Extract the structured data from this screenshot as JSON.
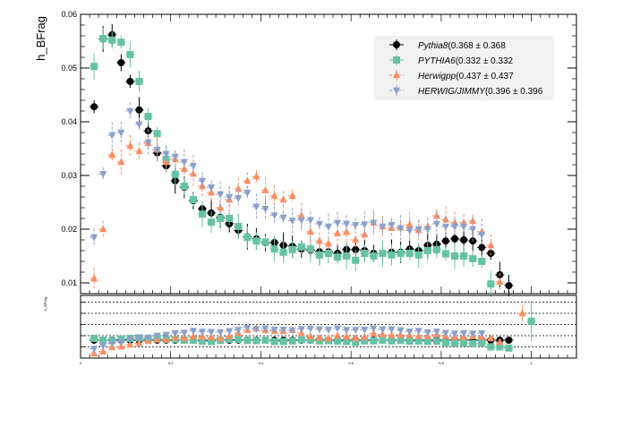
{
  "chart_data": [
    {
      "type": "scatter",
      "ylabel": "h_BFrag",
      "ylim": [
        0.008,
        0.06
      ],
      "yticks": [
        0.01,
        0.02,
        0.03,
        0.04,
        0.05,
        0.06
      ],
      "ytick_labels": [
        "0.01",
        "0.02",
        "0.03",
        "0.04",
        "0.05",
        "0.06"
      ],
      "xlim": [
        0,
        1.1
      ],
      "grid": false,
      "legend_position": "top-right",
      "series": [
        {
          "name": "Pythia8",
          "legend_extra": "(0.368 ± 0.368",
          "color": "#000000",
          "marker": "circle",
          "x": [
            0.03,
            0.05,
            0.07,
            0.09,
            0.11,
            0.13,
            0.15,
            0.17,
            0.19,
            0.21,
            0.23,
            0.25,
            0.27,
            0.29,
            0.31,
            0.33,
            0.35,
            0.37,
            0.39,
            0.41,
            0.43,
            0.45,
            0.47,
            0.49,
            0.51,
            0.53,
            0.55,
            0.57,
            0.59,
            0.61,
            0.63,
            0.65,
            0.67,
            0.69,
            0.71,
            0.73,
            0.75,
            0.77,
            0.79,
            0.81,
            0.83,
            0.85,
            0.87,
            0.89,
            0.91,
            0.93,
            0.95
          ],
          "y": [
            0.0428,
            0.0554,
            0.0562,
            0.051,
            0.0475,
            0.0422,
            0.0383,
            0.0342,
            0.0318,
            0.029,
            0.0278,
            0.0253,
            0.0238,
            0.023,
            0.0222,
            0.021,
            0.0198,
            0.0186,
            0.0182,
            0.0175,
            0.0175,
            0.017,
            0.0168,
            0.0163,
            0.0161,
            0.0158,
            0.0158,
            0.0155,
            0.0162,
            0.0162,
            0.016,
            0.0155,
            0.0155,
            0.0157,
            0.0157,
            0.0163,
            0.016,
            0.017,
            0.0172,
            0.0178,
            0.0182,
            0.018,
            0.0178,
            0.0166,
            0.0155,
            0.0115,
            0.0095
          ]
        },
        {
          "name": "PYTHIA6",
          "legend_extra": "(0.332 ± 0.332",
          "color": "#66c2a5",
          "marker": "square",
          "x": [
            0.03,
            0.05,
            0.07,
            0.09,
            0.11,
            0.13,
            0.15,
            0.17,
            0.19,
            0.21,
            0.23,
            0.25,
            0.27,
            0.29,
            0.31,
            0.33,
            0.35,
            0.37,
            0.39,
            0.41,
            0.43,
            0.45,
            0.47,
            0.49,
            0.51,
            0.53,
            0.55,
            0.57,
            0.59,
            0.61,
            0.63,
            0.65,
            0.67,
            0.69,
            0.71,
            0.73,
            0.75,
            0.77,
            0.79,
            0.81,
            0.83,
            0.85,
            0.87,
            0.89,
            0.91
          ],
          "y": [
            0.0503,
            0.0555,
            0.0552,
            0.0548,
            0.0525,
            0.0475,
            0.041,
            0.0378,
            0.033,
            0.0302,
            0.028,
            0.0255,
            0.0228,
            0.0213,
            0.022,
            0.022,
            0.0205,
            0.0185,
            0.0178,
            0.0176,
            0.0163,
            0.0157,
            0.0162,
            0.0167,
            0.0163,
            0.0152,
            0.0155,
            0.0148,
            0.015,
            0.0142,
            0.0155,
            0.015,
            0.0155,
            0.0152,
            0.0155,
            0.0155,
            0.0152,
            0.016,
            0.0162,
            0.0154,
            0.015,
            0.015,
            0.0145,
            0.014,
            0.0098
          ]
        },
        {
          "name": "Herwigpp",
          "legend_extra": "(0.437 ± 0.437",
          "color": "#fc8d62",
          "marker": "triangle-up",
          "x": [
            0.03,
            0.05,
            0.07,
            0.09,
            0.11,
            0.13,
            0.15,
            0.17,
            0.19,
            0.21,
            0.23,
            0.25,
            0.27,
            0.29,
            0.31,
            0.33,
            0.35,
            0.37,
            0.39,
            0.41,
            0.43,
            0.45,
            0.47,
            0.49,
            0.51,
            0.53,
            0.55,
            0.57,
            0.59,
            0.61,
            0.63,
            0.65,
            0.67,
            0.69,
            0.71,
            0.73,
            0.75,
            0.77,
            0.79,
            0.81,
            0.83,
            0.85,
            0.87,
            0.89,
            0.91,
            0.93
          ],
          "y": [
            0.0108,
            0.02,
            0.0338,
            0.0325,
            0.0355,
            0.0345,
            0.036,
            0.0348,
            0.0325,
            0.033,
            0.0312,
            0.0303,
            0.028,
            0.0268,
            0.024,
            0.0255,
            0.0275,
            0.029,
            0.0298,
            0.0272,
            0.0262,
            0.0255,
            0.0262,
            0.0225,
            0.0195,
            0.0178,
            0.0173,
            0.0192,
            0.0195,
            0.018,
            0.019,
            0.0212,
            0.0205,
            0.0202,
            0.0203,
            0.0208,
            0.0198,
            0.0205,
            0.0225,
            0.0218,
            0.0212,
            0.0212,
            0.0215,
            0.0195,
            0.017,
            0.0102
          ]
        },
        {
          "name": "HERWIG/JIMMY",
          "legend_extra": "(0.396 ± 0.396",
          "color": "#8da0cb",
          "marker": "triangle-down",
          "x": [
            0.03,
            0.05,
            0.07,
            0.09,
            0.11,
            0.13,
            0.15,
            0.17,
            0.19,
            0.21,
            0.23,
            0.25,
            0.27,
            0.29,
            0.31,
            0.33,
            0.35,
            0.37,
            0.39,
            0.41,
            0.43,
            0.45,
            0.47,
            0.49,
            0.51,
            0.53,
            0.55,
            0.57,
            0.59,
            0.61,
            0.63,
            0.65,
            0.67,
            0.69,
            0.71,
            0.73,
            0.75,
            0.77,
            0.79,
            0.81,
            0.83,
            0.85,
            0.87,
            0.89
          ],
          "y": [
            0.0185,
            0.0303,
            0.0375,
            0.038,
            0.042,
            0.0395,
            0.0362,
            0.0348,
            0.034,
            0.0335,
            0.0325,
            0.0318,
            0.029,
            0.0278,
            0.0265,
            0.026,
            0.0258,
            0.0268,
            0.0242,
            0.0238,
            0.0226,
            0.0222,
            0.0216,
            0.0217,
            0.0217,
            0.021,
            0.0205,
            0.0212,
            0.021,
            0.0208,
            0.0209,
            0.0212,
            0.0205,
            0.0208,
            0.0202,
            0.0198,
            0.02,
            0.02,
            0.021,
            0.0205,
            0.0205,
            0.0205,
            0.02,
            0.019
          ]
        }
      ]
    },
    {
      "type": "scatter",
      "ylabel": "h_BFrag",
      "note": "ratio panel below main plot; tick labels illegible at this resolution",
      "ylim": [
        0,
        2.8
      ],
      "xlim": [
        0,
        1.1
      ],
      "xticks": [
        0,
        0.2,
        0.4,
        0.6,
        0.8,
        1.0
      ],
      "xtick_labels": [
        "0",
        "0.2",
        "0.4",
        "0.6",
        "0.8",
        "1"
      ],
      "dotted_gridlines": [
        0.5,
        1.0,
        1.5,
        2.0,
        2.5
      ],
      "series": [
        {
          "name": "Pythia8",
          "color": "#000000",
          "marker": "circle",
          "x": [
            0.03,
            0.05,
            0.07,
            0.09,
            0.11,
            0.13,
            0.15,
            0.17,
            0.19,
            0.21,
            0.23,
            0.25,
            0.27,
            0.29,
            0.31,
            0.33,
            0.35,
            0.37,
            0.39,
            0.41,
            0.43,
            0.45,
            0.47,
            0.49,
            0.51,
            0.53,
            0.55,
            0.57,
            0.59,
            0.61,
            0.63,
            0.65,
            0.67,
            0.69,
            0.71,
            0.73,
            0.75,
            0.77,
            0.79,
            0.81,
            0.83,
            0.85,
            0.87,
            0.89,
            0.91,
            0.93,
            0.95
          ],
          "y": [
            0.8,
            0.8,
            0.8,
            0.8,
            0.8,
            0.8,
            0.8,
            0.8,
            0.8,
            0.8,
            0.8,
            0.8,
            0.8,
            0.8,
            0.8,
            0.8,
            0.8,
            0.8,
            0.8,
            0.8,
            0.8,
            0.8,
            0.8,
            0.8,
            0.8,
            0.8,
            0.8,
            0.8,
            0.8,
            0.8,
            0.8,
            0.8,
            0.8,
            0.8,
            0.8,
            0.8,
            0.8,
            0.8,
            0.8,
            0.8,
            0.8,
            0.8,
            0.8,
            0.8,
            0.8,
            0.8,
            0.8
          ]
        },
        {
          "name": "PYTHIA6",
          "color": "#66c2a5",
          "marker": "square",
          "x": [
            0.03,
            0.05,
            0.07,
            0.09,
            0.11,
            0.13,
            0.15,
            0.17,
            0.19,
            0.21,
            0.23,
            0.25,
            0.27,
            0.29,
            0.31,
            0.33,
            0.35,
            0.37,
            0.39,
            0.41,
            0.43,
            0.45,
            0.47,
            0.49,
            0.51,
            0.53,
            0.55,
            0.57,
            0.59,
            0.61,
            0.63,
            0.65,
            0.67,
            0.69,
            0.71,
            0.73,
            0.75,
            0.77,
            0.79,
            0.81,
            0.83,
            0.85,
            0.87,
            0.89,
            0.91,
            0.93,
            0.95,
            1.0
          ],
          "y": [
            0.88,
            0.8,
            0.78,
            0.85,
            0.88,
            0.9,
            0.86,
            0.88,
            0.83,
            0.83,
            0.8,
            0.8,
            0.76,
            0.74,
            0.79,
            0.84,
            0.83,
            0.79,
            0.78,
            0.8,
            0.74,
            0.74,
            0.77,
            0.82,
            0.81,
            0.77,
            0.78,
            0.76,
            0.74,
            0.7,
            0.77,
            0.77,
            0.8,
            0.77,
            0.79,
            0.76,
            0.76,
            0.75,
            0.75,
            0.69,
            0.66,
            0.67,
            0.65,
            0.67,
            0.5,
            0.5,
            0.45,
            1.65
          ]
        },
        {
          "name": "Herwigpp",
          "color": "#fc8d62",
          "marker": "triangle-up",
          "x": [
            0.03,
            0.05,
            0.07,
            0.09,
            0.11,
            0.13,
            0.15,
            0.17,
            0.19,
            0.21,
            0.23,
            0.25,
            0.27,
            0.29,
            0.31,
            0.33,
            0.35,
            0.37,
            0.39,
            0.41,
            0.43,
            0.45,
            0.47,
            0.49,
            0.51,
            0.53,
            0.55,
            0.57,
            0.59,
            0.61,
            0.63,
            0.65,
            0.67,
            0.69,
            0.71,
            0.73,
            0.75,
            0.77,
            0.79,
            0.81,
            0.83,
            0.85,
            0.87,
            0.89,
            0.91,
            0.93,
            0.98
          ],
          "y": [
            0.2,
            0.29,
            0.48,
            0.51,
            0.6,
            0.66,
            0.76,
            0.82,
            0.83,
            0.91,
            0.9,
            0.96,
            0.95,
            0.93,
            0.87,
            0.97,
            1.11,
            1.25,
            1.32,
            1.24,
            1.21,
            1.2,
            1.25,
            1.11,
            0.97,
            0.9,
            0.88,
            1.0,
            0.96,
            0.89,
            0.95,
            1.09,
            1.06,
            1.03,
            1.04,
            1.02,
            0.99,
            0.97,
            1.05,
            0.98,
            0.93,
            0.94,
            0.97,
            0.94,
            0.88,
            0.71,
            2.0
          ]
        },
        {
          "name": "HERWIG/JIMMY",
          "color": "#8da0cb",
          "marker": "triangle-down",
          "x": [
            0.03,
            0.05,
            0.07,
            0.09,
            0.11,
            0.13,
            0.15,
            0.17,
            0.19,
            0.21,
            0.23,
            0.25,
            0.27,
            0.29,
            0.31,
            0.33,
            0.35,
            0.37,
            0.39,
            0.41,
            0.43,
            0.45,
            0.47,
            0.49,
            0.51,
            0.53,
            0.55,
            0.57,
            0.59,
            0.61,
            0.63,
            0.65,
            0.67,
            0.69,
            0.71,
            0.73,
            0.75,
            0.77,
            0.79,
            0.81,
            0.83,
            0.85,
            0.87,
            0.89
          ],
          "y": [
            0.42,
            0.55,
            0.66,
            0.73,
            0.85,
            0.91,
            0.92,
            1.0,
            1.04,
            1.12,
            1.14,
            1.22,
            1.18,
            1.17,
            1.16,
            1.21,
            1.26,
            1.36,
            1.3,
            1.33,
            1.27,
            1.27,
            1.25,
            1.3,
            1.32,
            1.29,
            1.27,
            1.33,
            1.26,
            1.26,
            1.27,
            1.33,
            1.29,
            1.29,
            1.25,
            1.19,
            1.22,
            1.15,
            1.19,
            1.13,
            1.1,
            1.12,
            1.1,
            1.11
          ]
        }
      ]
    }
  ]
}
